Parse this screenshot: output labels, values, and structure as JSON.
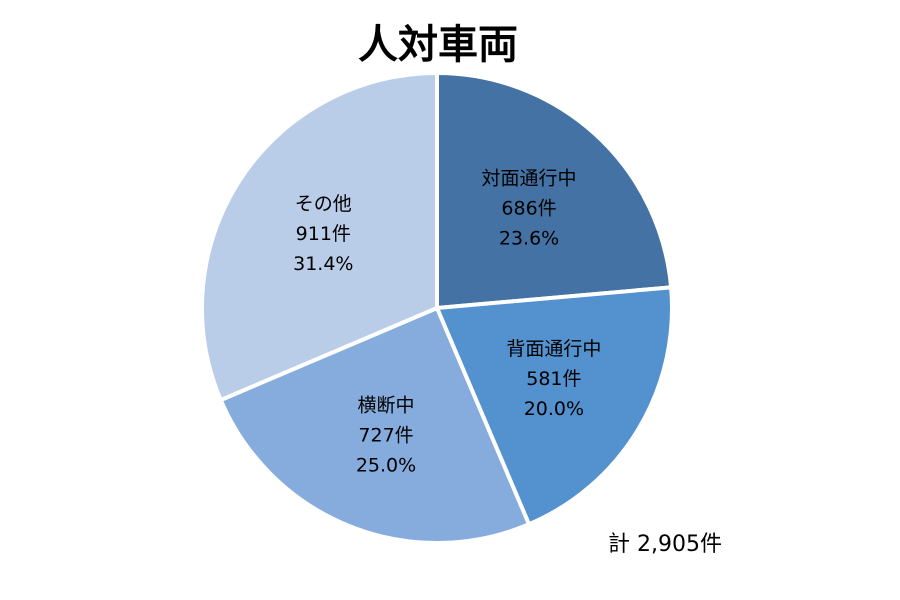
{
  "chart_data": {
    "type": "pie",
    "title": "人対車両",
    "total_label": "計 2,905件",
    "start_angle_deg": 0,
    "direction": "clockwise",
    "slices": [
      {
        "label": "対面通行中",
        "count": "686件",
        "percent": "23.6%",
        "value": 23.6,
        "color": "#4472a4"
      },
      {
        "label": "背面通行中",
        "count": "581件",
        "percent": "20.0%",
        "value": 20.0,
        "color": "#5391cf"
      },
      {
        "label": "横断中",
        "count": "727件",
        "percent": "25.0%",
        "value": 25.0,
        "color": "#85acdd"
      },
      {
        "label": "その他",
        "count": "911件",
        "percent": "31.4%",
        "value": 31.4,
        "color": "#b9cce8"
      }
    ]
  }
}
